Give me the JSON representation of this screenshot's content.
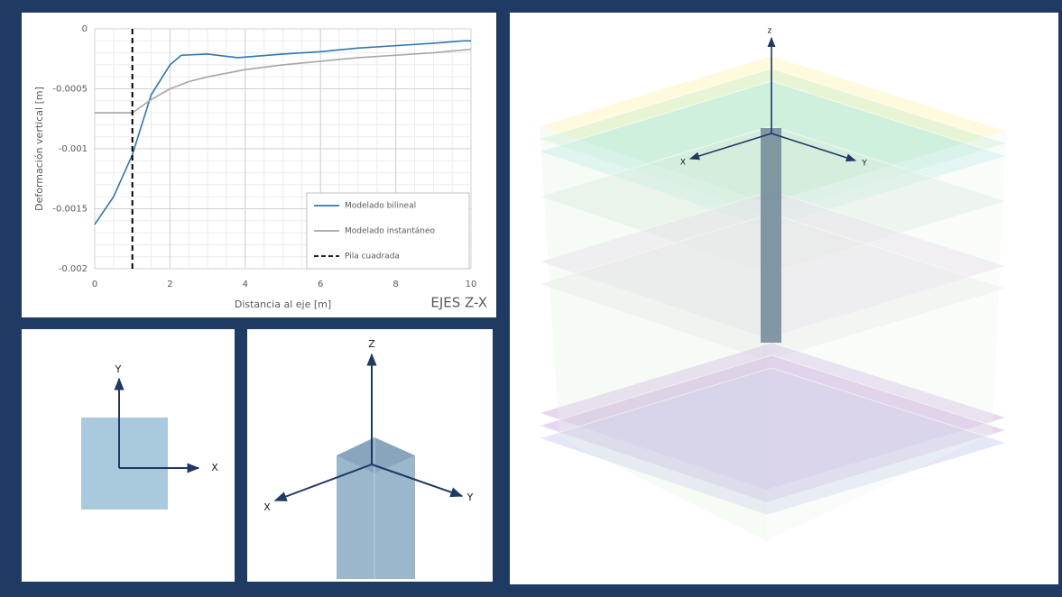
{
  "chart_data": {
    "type": "line",
    "ylabel": "Deformación vertical [m]",
    "xlabel": "Distancia al eje [m]",
    "annotation": "EJES Z-X",
    "xlim": [
      0,
      10
    ],
    "ylim": [
      -0.002,
      0
    ],
    "xticks": [
      0,
      2,
      4,
      6,
      8,
      10
    ],
    "yticks": [
      0,
      -0.0005,
      -0.001,
      -0.0015,
      -0.002
    ],
    "grid": true,
    "minor_grid": true,
    "legend": "lower right",
    "series": [
      {
        "name": "Modelado bilineal",
        "color": "#2e75b6",
        "dash": "solid",
        "x": [
          0,
          0.5,
          1,
          1.5,
          2,
          2.3,
          3,
          3.8,
          5,
          6,
          7,
          8,
          9,
          9.8,
          10
        ],
        "values": [
          -0.00163,
          -0.0014,
          -0.00105,
          -0.00055,
          -0.0003,
          -0.00022,
          -0.00021,
          -0.00024,
          -0.00021,
          -0.00019,
          -0.00016,
          -0.00014,
          -0.00012,
          -0.0001,
          -0.0001
        ]
      },
      {
        "name": "Modelado instantáneo",
        "color": "#a6a6a6",
        "dash": "solid",
        "x": [
          0,
          1,
          1.5,
          2,
          2.5,
          3,
          4,
          5,
          6,
          7,
          8,
          9,
          10
        ],
        "values": [
          -0.0007,
          -0.0007,
          -0.00059,
          -0.0005,
          -0.00044,
          -0.0004,
          -0.00034,
          -0.0003,
          -0.00027,
          -0.00024,
          -0.00022,
          -0.0002,
          -0.00017
        ]
      },
      {
        "name": "Pila cuadrada",
        "color": "#000000",
        "dash": "dashed",
        "x": [
          1,
          1
        ],
        "values": [
          0,
          -0.002
        ]
      }
    ]
  },
  "diagrams": {
    "plan": {
      "y_axis": "Y",
      "x_axis": "X"
    },
    "pile": {
      "z_axis": "Z",
      "x_axis": "X",
      "y_axis": "Y"
    },
    "model": {
      "z_axis": "z",
      "x_axis": "X",
      "y_axis": "Y"
    }
  }
}
